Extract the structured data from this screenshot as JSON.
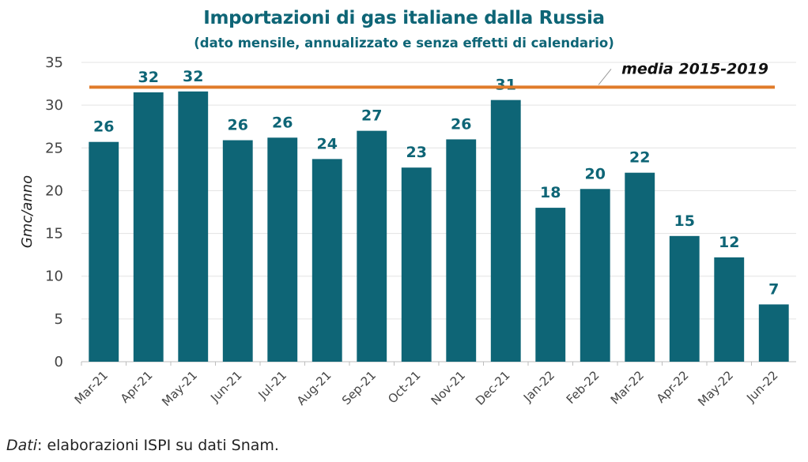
{
  "chart_data": {
    "type": "bar",
    "title": "Importazioni di gas italiane dalla Russia",
    "subtitle": "(dato mensile, annualizzato e senza effetti di calendario)",
    "ylabel": "Gmc/anno",
    "xlabel": "",
    "ylim": [
      0,
      35
    ],
    "yticks": [
      "0",
      "5",
      "10",
      "15",
      "20",
      "25",
      "30",
      "35"
    ],
    "grid": true,
    "categories": [
      "Mar-21",
      "Apr-21",
      "May-21",
      "Jun-21",
      "Jul-21",
      "Aug-21",
      "Sep-21",
      "Oct-21",
      "Nov-21",
      "Dec-21",
      "Jan-22",
      "Feb-22",
      "Mar-22",
      "Apr-22",
      "May-22",
      "Jun-22"
    ],
    "values": [
      25.7,
      31.5,
      31.6,
      25.9,
      26.2,
      23.7,
      27.0,
      22.7,
      26.0,
      30.6,
      18.0,
      20.2,
      22.1,
      14.7,
      12.2,
      6.7
    ],
    "data_labels": [
      "26",
      "32",
      "32",
      "26",
      "26",
      "24",
      "27",
      "23",
      "26",
      "31",
      "18",
      "20",
      "22",
      "15",
      "12",
      "7"
    ],
    "bar_color": "#0e6576",
    "reference_line": {
      "label": "media 2015-2019",
      "value": 32.1,
      "color": "#e07b2a"
    }
  },
  "source": {
    "prefix": "Dati",
    "text": ": elaborazioni ISPI su dati Snam."
  }
}
